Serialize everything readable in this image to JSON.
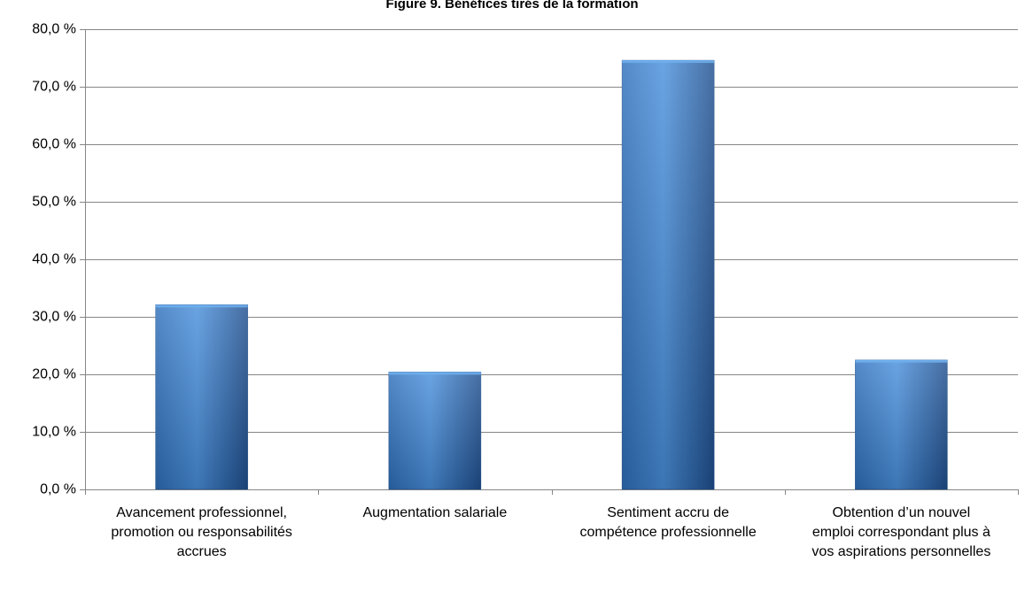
{
  "chart_data": {
    "type": "bar",
    "title": "Figure 9. Bénéfices tirés de la formation",
    "xlabel": "",
    "ylabel": "",
    "categories": [
      "Avancement professionnel, promotion ou responsabilités accrues",
      "Augmentation salariale",
      "Sentiment accru de compétence professionnelle",
      "Obtention d’un nouvel emploi correspondant plus à vos aspirations personnelles"
    ],
    "category_lines": [
      [
        "Avancement professionnel,",
        "promotion ou responsabilités",
        "accrues"
      ],
      [
        "Augmentation salariale"
      ],
      [
        "Sentiment accru de",
        "compétence professionnelle"
      ],
      [
        "Obtention d’un nouvel",
        "emploi correspondant plus à",
        "vos aspirations personnelles"
      ]
    ],
    "series": [
      {
        "values": [
          32.1,
          20.4,
          74.6,
          22.5
        ]
      }
    ],
    "ylim": [
      0,
      80
    ],
    "yticks": [
      0,
      10,
      20,
      30,
      40,
      50,
      60,
      70,
      80
    ],
    "ytick_labels": [
      "0,0 %",
      "10,0 %",
      "20,0 %",
      "30,0 %",
      "40,0 %",
      "50,0 %",
      "60,0 %",
      "70,0 %",
      "80,0 %"
    ],
    "grid": true,
    "legend": "none",
    "colors": {
      "bar_light": "#4a90dc",
      "bar_mid": "#2e6fba",
      "bar_dark": "#1f4f8f",
      "gridline": "#868686",
      "axis": "#868686"
    }
  }
}
